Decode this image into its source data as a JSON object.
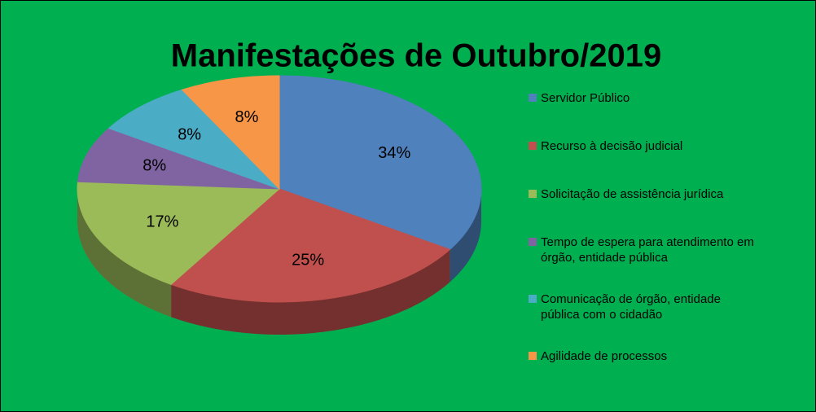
{
  "chart_data": {
    "type": "pie",
    "title": "Manifestações de Outubro/2019",
    "categories": [
      "Servidor Público",
      "Recurso à decisão judicial",
      "Solicitação de assistência jurídica",
      "Tempo de espera para atendimento em órgão, entidade pública",
      "Comunicação de órgão, entidade pública com o cidadão",
      "Agilidade de processos"
    ],
    "values": [
      34,
      25,
      17,
      8,
      8,
      8
    ],
    "value_labels": [
      "34%",
      "25%",
      "17%",
      "8%",
      "8%",
      "8%"
    ],
    "colors": [
      "#4f81bd",
      "#c0504d",
      "#9bbb59",
      "#8064a2",
      "#4bacc6",
      "#f79646"
    ],
    "legend": "right"
  }
}
